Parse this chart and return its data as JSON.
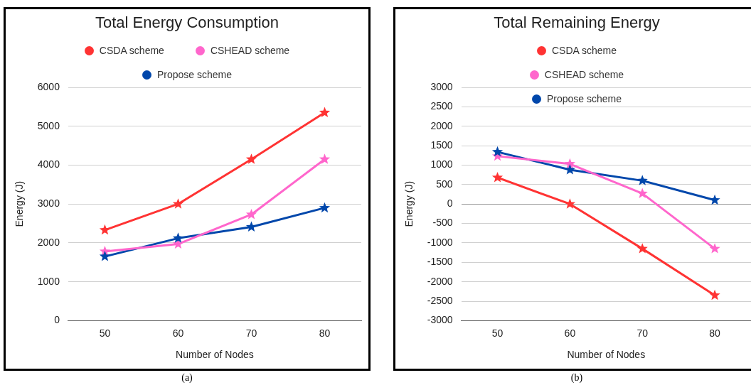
{
  "chart_data": [
    {
      "type": "line",
      "title": "Total Energy Consumption",
      "xlabel": "Number of Nodes",
      "ylabel": "Energy (J)",
      "categories": [
        "50",
        "60",
        "70",
        "80"
      ],
      "ylim": [
        0,
        6000
      ],
      "yticks": [
        0,
        1000,
        2000,
        3000,
        4000,
        5000,
        6000
      ],
      "grid": "y",
      "legend": "top",
      "marker": "star",
      "line_style": "solid",
      "annotations": [
        "(a)"
      ],
      "series": [
        {
          "name": "CSDA scheme",
          "color": "#ff3333",
          "values": [
            2330,
            3000,
            4150,
            5350
          ]
        },
        {
          "name": "CSHEAD scheme",
          "color": "#ff66cc",
          "values": [
            1780,
            1970,
            2730,
            4150
          ]
        },
        {
          "name": "Propose scheme",
          "color": "#0047ab",
          "values": [
            1650,
            2120,
            2410,
            2900
          ]
        }
      ]
    },
    {
      "type": "line",
      "title": "Total Remaining Energy",
      "xlabel": "Number of Nodes",
      "ylabel": "Energy (J)",
      "categories": [
        "50",
        "60",
        "70",
        "80"
      ],
      "ylim": [
        -3000,
        3000
      ],
      "yticks": [
        -3000,
        -2500,
        -2000,
        -1500,
        -1000,
        -500,
        0,
        500,
        1000,
        1500,
        2000,
        2500,
        3000
      ],
      "grid": "y",
      "legend": "top",
      "marker": "star",
      "line_style": "solid",
      "annotations": [
        "(b)"
      ],
      "series": [
        {
          "name": "CSDA scheme",
          "color": "#ff3333",
          "values": [
            680,
            0,
            -1150,
            -2350
          ]
        },
        {
          "name": "CSHEAD scheme",
          "color": "#ff66cc",
          "values": [
            1230,
            1030,
            270,
            -1150
          ]
        },
        {
          "name": "Propose scheme",
          "color": "#0047ab",
          "values": [
            1340,
            880,
            600,
            100
          ]
        }
      ]
    }
  ]
}
